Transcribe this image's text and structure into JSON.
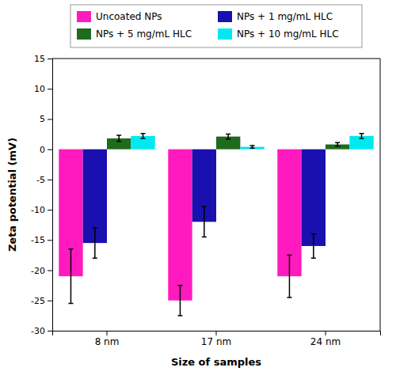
{
  "chart_data": {
    "type": "bar",
    "categories": [
      "8 nm",
      "17 nm",
      "24 nm"
    ],
    "series": [
      {
        "name": "Uncoated NPs",
        "color": "#FF1ABF",
        "values": [
          -21.0,
          -25.0,
          -21.0
        ],
        "errors": [
          4.5,
          2.5,
          3.5
        ]
      },
      {
        "name": "NPs + 1 mg/mL HLC",
        "color": "#1A10B0",
        "values": [
          -15.5,
          -12.0,
          -16.0
        ],
        "errors": [
          2.5,
          2.5,
          2.0
        ]
      },
      {
        "name": "NPs + 5 mg/mL HLC",
        "color": "#1E6B1E",
        "values": [
          1.8,
          2.1,
          0.8
        ],
        "errors": [
          0.5,
          0.4,
          0.3
        ]
      },
      {
        "name": "NPs + 10 mg/mL HLC",
        "color": "#00E8F0",
        "values": [
          2.2,
          0.4,
          2.2
        ],
        "errors": [
          0.4,
          0.2,
          0.4
        ]
      }
    ],
    "xlabel": "Size of samples",
    "ylabel": "Zeta potential (mV)",
    "ylim": [
      -30,
      15
    ],
    "yticks": [
      -30,
      -25,
      -20,
      -15,
      -10,
      -5,
      0,
      5,
      10,
      15
    ],
    "legend": "top"
  }
}
